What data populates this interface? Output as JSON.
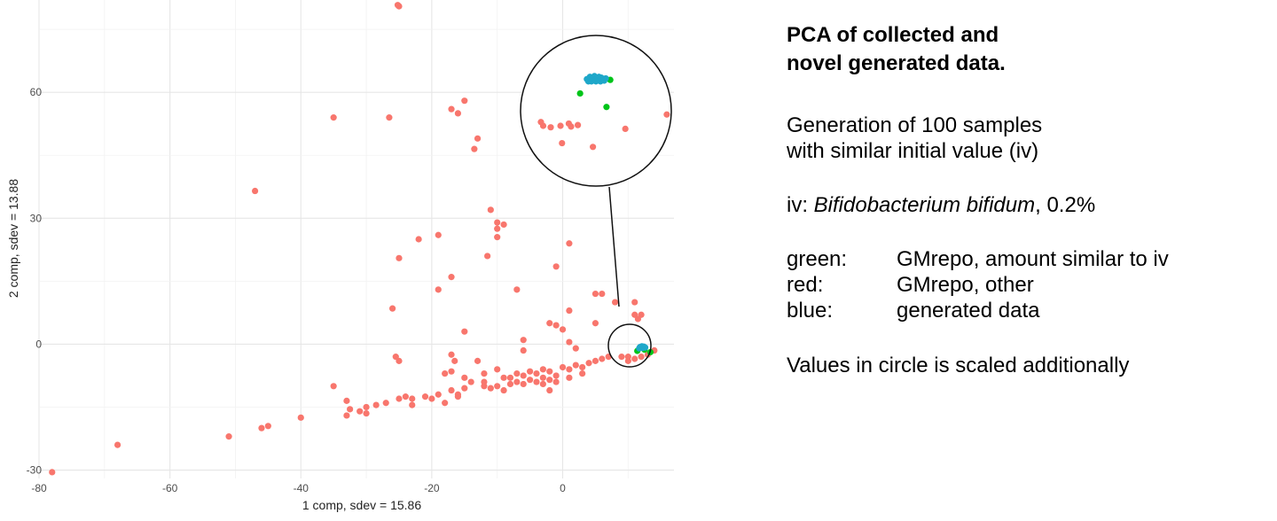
{
  "chart_data": {
    "type": "scatter",
    "xlabel": "1 comp, sdev = 15.86",
    "ylabel": "2 comp, sdev = 13.88",
    "xlim": [
      -80,
      17
    ],
    "ylim": [
      -32,
      82
    ],
    "xticks": [
      -80,
      -60,
      -40,
      -20,
      0
    ],
    "yticks": [
      -30,
      0,
      30,
      60
    ],
    "grid": true,
    "series": [
      {
        "color": "#f8766d",
        "points": [
          [
            -25.2,
            80.8
          ],
          [
            -25.0,
            80.5
          ],
          [
            -15,
            58
          ],
          [
            -17,
            56
          ],
          [
            -16,
            55
          ],
          [
            -35,
            54
          ],
          [
            -26.5,
            54
          ],
          [
            -13,
            49
          ],
          [
            -13.5,
            46.5
          ],
          [
            -47,
            36.5
          ],
          [
            -11,
            32
          ],
          [
            -10,
            29
          ],
          [
            -10,
            27.5
          ],
          [
            -9,
            28.5
          ],
          [
            -10,
            25.5
          ],
          [
            -22,
            25
          ],
          [
            -19,
            26
          ],
          [
            1,
            24
          ],
          [
            -11.5,
            21
          ],
          [
            -25,
            20.5
          ],
          [
            -1,
            18.5
          ],
          [
            -17,
            16
          ],
          [
            -19,
            13
          ],
          [
            -7,
            13
          ],
          [
            5,
            12
          ],
          [
            6,
            12
          ],
          [
            8,
            10
          ],
          [
            -26,
            8.5
          ],
          [
            1,
            8
          ],
          [
            11,
            10
          ],
          [
            11,
            7
          ],
          [
            12,
            7
          ],
          [
            11.5,
            6
          ],
          [
            -2,
            5
          ],
          [
            -1,
            4.5
          ],
          [
            5,
            5
          ],
          [
            -15,
            3
          ],
          [
            0,
            3.5
          ],
          [
            1,
            0.5
          ],
          [
            -6,
            1
          ],
          [
            2,
            -1
          ],
          [
            -6,
            -1.5
          ],
          [
            -25.5,
            -3
          ],
          [
            -25,
            -4
          ],
          [
            -17,
            -2.5
          ],
          [
            -16.5,
            -4
          ],
          [
            -13,
            -4
          ],
          [
            -17,
            -6.5
          ],
          [
            -18,
            -7
          ],
          [
            -12,
            -7
          ],
          [
            -10,
            -6
          ],
          [
            -15,
            -8
          ],
          [
            -9,
            -8
          ],
          [
            -7,
            -7
          ],
          [
            -6,
            -7.5
          ],
          [
            -5,
            -6.5
          ],
          [
            -4,
            -7
          ],
          [
            -3,
            -6
          ],
          [
            -2,
            -6.5
          ],
          [
            -1,
            -7.5
          ],
          [
            0,
            -5.5
          ],
          [
            1,
            -6
          ],
          [
            2,
            -5
          ],
          [
            3,
            -5.5
          ],
          [
            4,
            -4.5
          ],
          [
            5,
            -4
          ],
          [
            6,
            -3.5
          ],
          [
            7,
            -3
          ],
          [
            9,
            -3
          ],
          [
            10,
            -3
          ],
          [
            10,
            -4
          ],
          [
            11,
            -3.5
          ],
          [
            12,
            -3
          ],
          [
            13,
            -2.5
          ],
          [
            14,
            -1.5
          ],
          [
            -14,
            -9
          ],
          [
            -12,
            -10
          ],
          [
            -11,
            -10.5
          ],
          [
            -10,
            -10
          ],
          [
            -9,
            -11
          ],
          [
            -8,
            -9.5
          ],
          [
            -7,
            -9
          ],
          [
            -6,
            -9.5
          ],
          [
            -5,
            -8.5
          ],
          [
            -4,
            -9
          ],
          [
            -3,
            -8
          ],
          [
            -2,
            -8.5
          ],
          [
            -1,
            -9
          ],
          [
            1,
            -8
          ],
          [
            -17,
            -11
          ],
          [
            -16,
            -12
          ],
          [
            -19,
            -12
          ],
          [
            -20,
            -13
          ],
          [
            -21,
            -12.5
          ],
          [
            -15,
            -10.5
          ],
          [
            -18,
            -14
          ],
          [
            -24,
            -12.5
          ],
          [
            -23,
            -13
          ],
          [
            -23,
            -14.5
          ],
          [
            -25,
            -13
          ],
          [
            -27,
            -14
          ],
          [
            -28.5,
            -14.5
          ],
          [
            -30,
            -15
          ],
          [
            -31,
            -16
          ],
          [
            -32.5,
            -15.5
          ],
          [
            -33,
            -17
          ],
          [
            -30,
            -16.5
          ],
          [
            -33,
            -13.5
          ],
          [
            -35,
            -10
          ],
          [
            -40,
            -17.5
          ],
          [
            -45,
            -19.5
          ],
          [
            -46,
            -20
          ],
          [
            -51,
            -22
          ],
          [
            -68,
            -24
          ],
          [
            -78,
            -30.5
          ],
          [
            -12,
            -9
          ],
          [
            -16,
            -12.5
          ],
          [
            -8,
            -8
          ],
          [
            -2,
            -11
          ],
          [
            3,
            -7
          ],
          [
            -3,
            -9.5
          ]
        ]
      },
      {
        "color": "#00c419",
        "points": [
          [
            11.4,
            -1.6
          ],
          [
            12.5,
            -1.3
          ],
          [
            13.4,
            -1.9
          ]
        ]
      },
      {
        "color": "#1ea7c9",
        "points": [
          [
            11.8,
            -0.7
          ],
          [
            12.1,
            -0.5
          ],
          [
            12.4,
            -0.6
          ],
          [
            12.2,
            -0.9
          ],
          [
            11.7,
            -1.0
          ],
          [
            12.6,
            -0.8
          ]
        ]
      }
    ],
    "inset": {
      "series": [
        {
          "color": "#f8766d",
          "points": [
            [
              -0.73,
              -0.15
            ],
            [
              -0.7,
              -0.2
            ],
            [
              -0.6,
              -0.22
            ],
            [
              -0.47,
              -0.2
            ],
            [
              -0.36,
              -0.17
            ],
            [
              -0.33,
              -0.21
            ],
            [
              -0.24,
              -0.19
            ],
            [
              -0.45,
              -0.43
            ],
            [
              -0.04,
              -0.48
            ],
            [
              0.39,
              -0.24
            ],
            [
              0.94,
              -0.05
            ]
          ]
        },
        {
          "color": "#00c419",
          "points": [
            [
              -0.21,
              0.23
            ],
            [
              0.14,
              0.05
            ],
            [
              0.07,
              0.41
            ],
            [
              0.19,
              0.41
            ]
          ]
        },
        {
          "color": "#1ea7c9",
          "points": [
            [
              -0.12,
              0.42
            ],
            [
              -0.08,
              0.45
            ],
            [
              -0.05,
              0.42
            ],
            [
              -0.02,
              0.46
            ],
            [
              0.01,
              0.42
            ],
            [
              0.04,
              0.45
            ],
            [
              0.07,
              0.44
            ],
            [
              0.1,
              0.42
            ],
            [
              0.13,
              0.43
            ],
            [
              -0.1,
              0.39
            ],
            [
              -0.06,
              0.39
            ],
            [
              0.0,
              0.39
            ],
            [
              0.06,
              0.39
            ],
            [
              0.11,
              0.4
            ]
          ]
        }
      ]
    }
  },
  "legend_panel": {
    "title": "PCA of collected and\nnovel generated data.",
    "description": "Generation of 100 samples\nwith similar initial value (iv)",
    "iv_prefix": "iv: ",
    "iv_species": "Bifidobacterium bifidum",
    "iv_suffix": ", 0.2%",
    "legend": [
      {
        "key": "green:",
        "value": "GMrepo, amount similar  to iv"
      },
      {
        "key": "red:",
        "value": "GMrepo, other"
      },
      {
        "key": "blue:",
        "value": "generated data"
      }
    ],
    "footnote": "Values in circle is scaled additionally"
  }
}
